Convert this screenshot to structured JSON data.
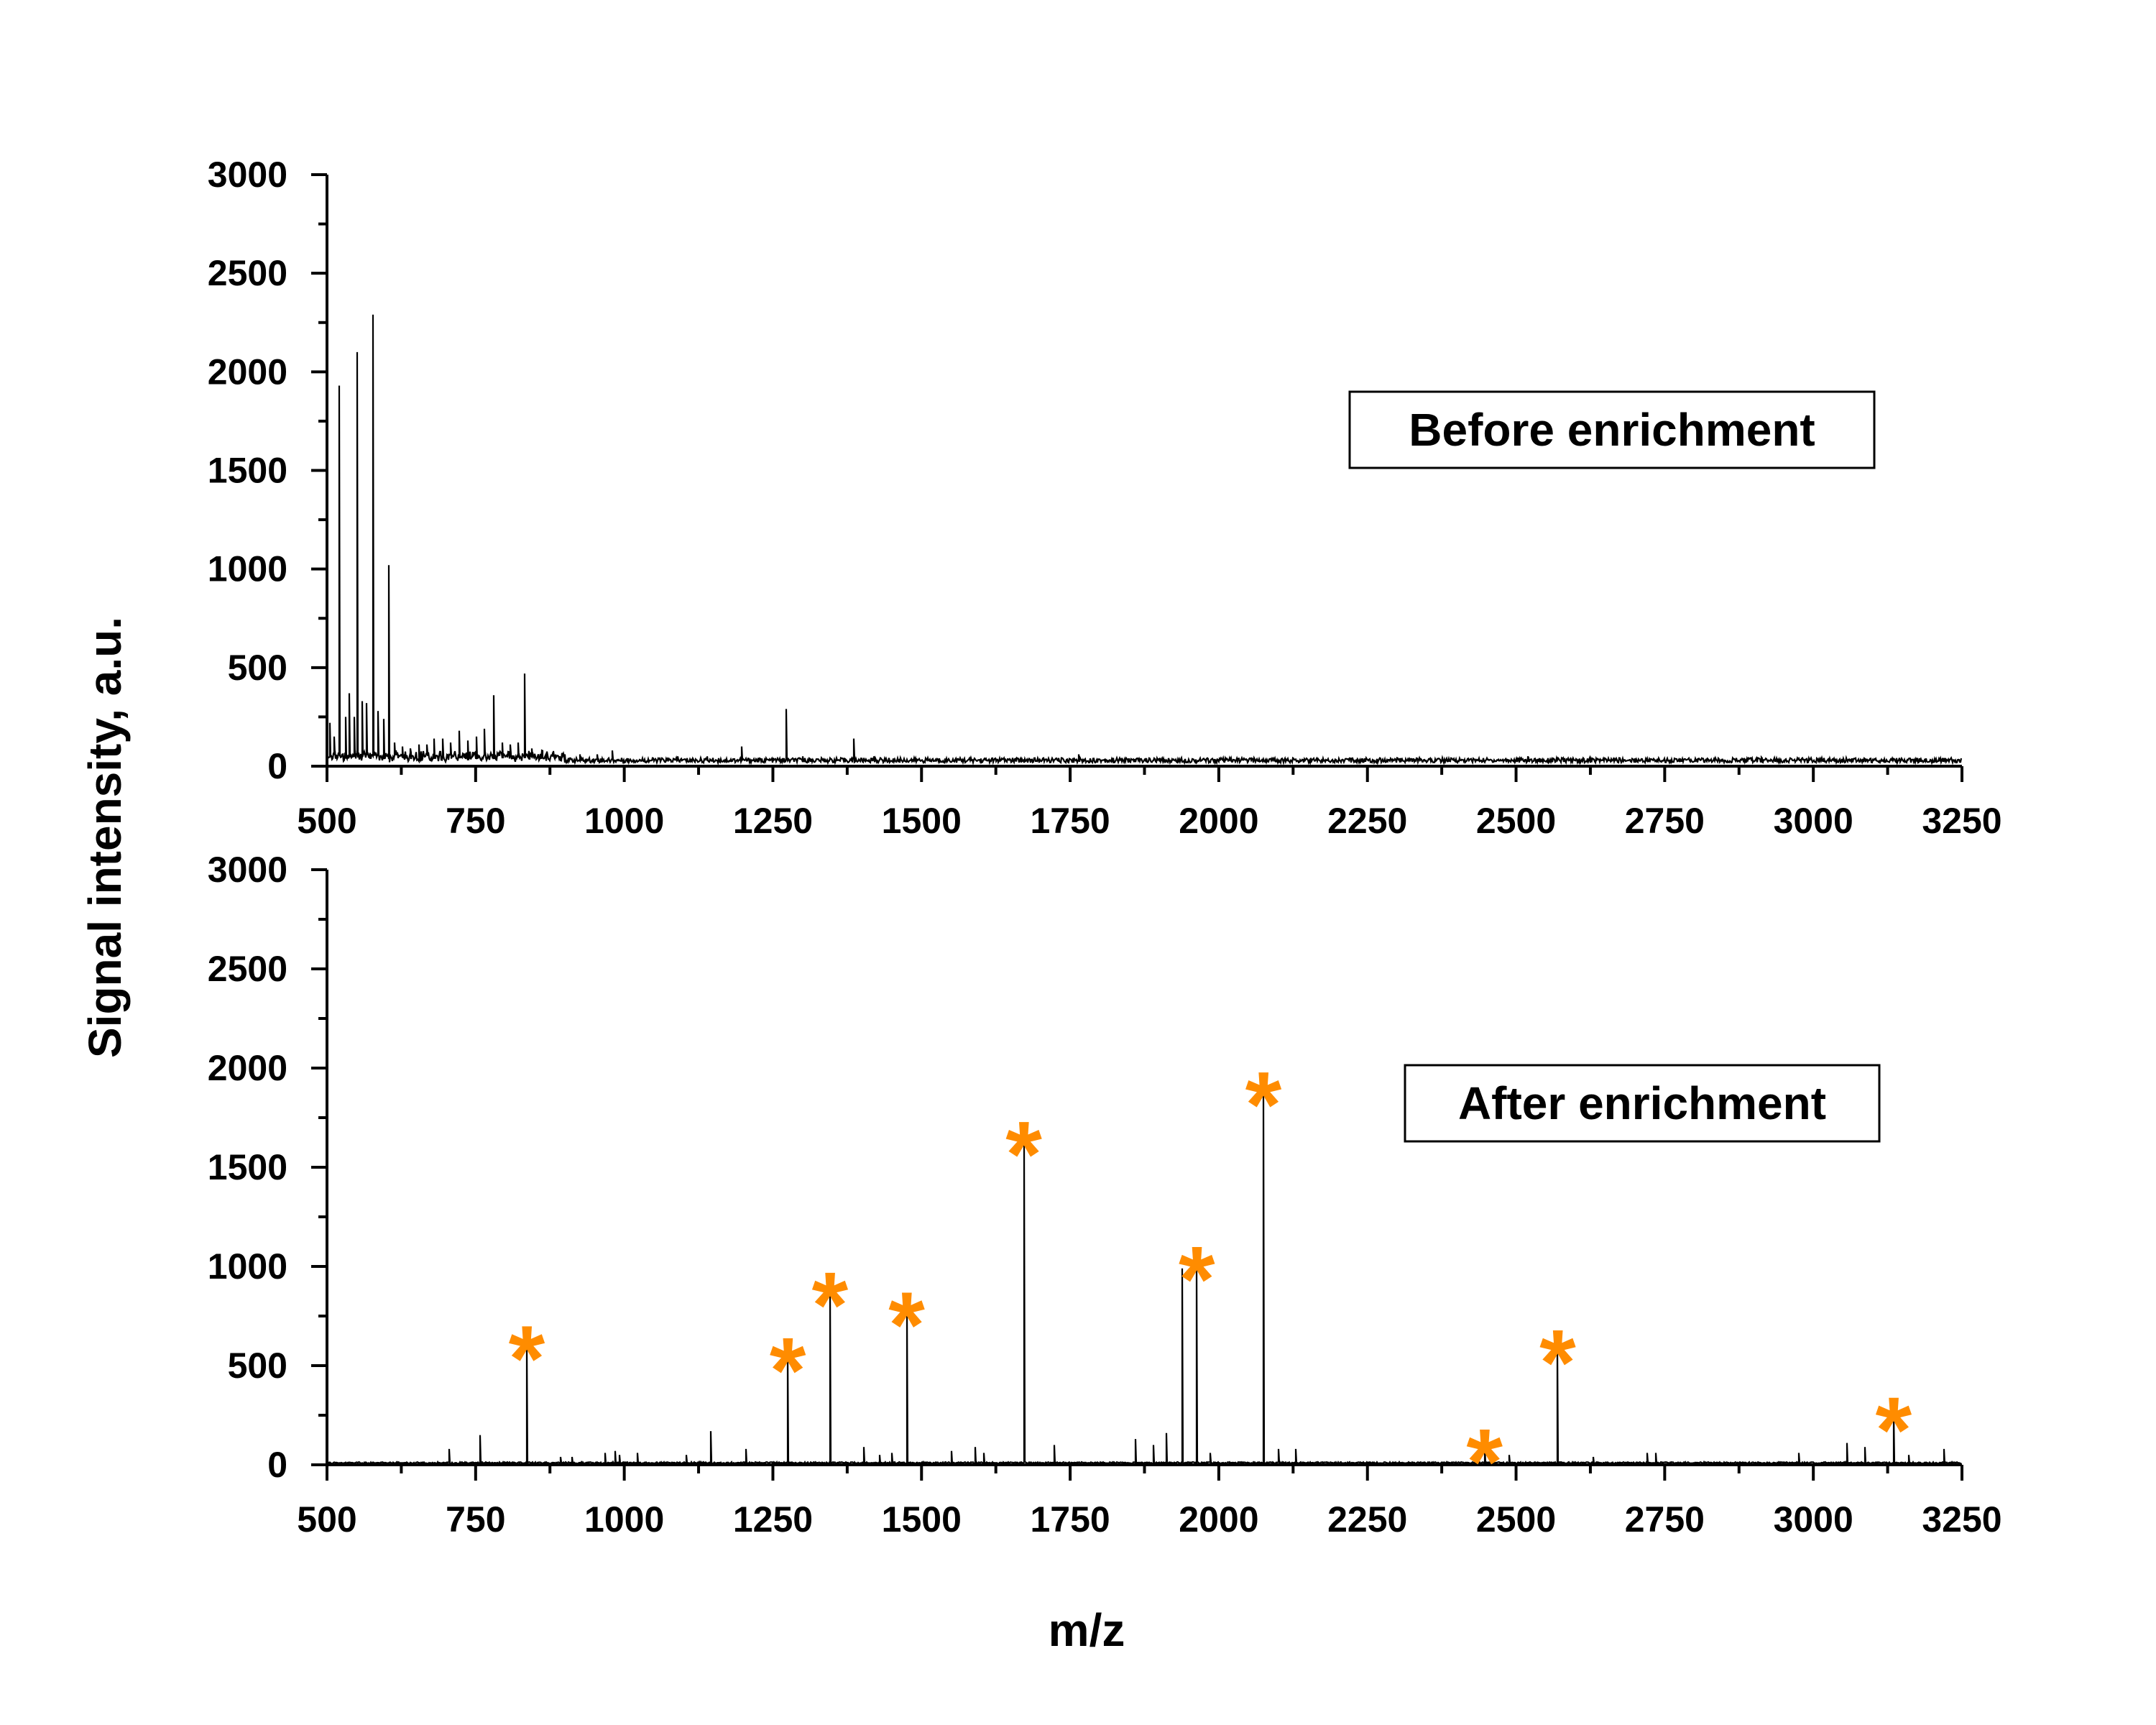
{
  "figure": {
    "ylabel": "Signal intensity, a.u.",
    "xlabel": "m/z"
  },
  "chart_data": [
    {
      "type": "line",
      "name": "top-panel",
      "legend": "Before enrichment",
      "xlim": [
        500,
        3250
      ],
      "ylim": [
        0,
        3000
      ],
      "x_ticks": [
        500,
        750,
        1000,
        1250,
        1500,
        1750,
        2000,
        2250,
        2500,
        2750,
        3000,
        3250
      ],
      "y_ticks": [
        0,
        500,
        1000,
        1500,
        2000,
        2500,
        3000
      ],
      "baseline": 30,
      "peaks": [
        {
          "x": 505,
          "y": 220
        },
        {
          "x": 512,
          "y": 150
        },
        {
          "x": 521,
          "y": 1930
        },
        {
          "x": 531,
          "y": 250
        },
        {
          "x": 538,
          "y": 370
        },
        {
          "x": 546,
          "y": 250
        },
        {
          "x": 551,
          "y": 2100
        },
        {
          "x": 559,
          "y": 330
        },
        {
          "x": 566,
          "y": 320
        },
        {
          "x": 577,
          "y": 2290
        },
        {
          "x": 586,
          "y": 280
        },
        {
          "x": 595,
          "y": 240
        },
        {
          "x": 604,
          "y": 1020
        },
        {
          "x": 614,
          "y": 120
        },
        {
          "x": 627,
          "y": 100
        },
        {
          "x": 640,
          "y": 90
        },
        {
          "x": 655,
          "y": 110
        },
        {
          "x": 668,
          "y": 110
        },
        {
          "x": 680,
          "y": 140
        },
        {
          "x": 695,
          "y": 140
        },
        {
          "x": 708,
          "y": 120
        },
        {
          "x": 722,
          "y": 180
        },
        {
          "x": 737,
          "y": 130
        },
        {
          "x": 752,
          "y": 150
        },
        {
          "x": 765,
          "y": 190
        },
        {
          "x": 781,
          "y": 360
        },
        {
          "x": 795,
          "y": 120
        },
        {
          "x": 808,
          "y": 110
        },
        {
          "x": 821,
          "y": 120
        },
        {
          "x": 833,
          "y": 470
        },
        {
          "x": 845,
          "y": 90
        },
        {
          "x": 862,
          "y": 80
        },
        {
          "x": 880,
          "y": 70
        },
        {
          "x": 900,
          "y": 60
        },
        {
          "x": 925,
          "y": 60
        },
        {
          "x": 955,
          "y": 60
        },
        {
          "x": 980,
          "y": 80
        },
        {
          "x": 1090,
          "y": 50
        },
        {
          "x": 1140,
          "y": 50
        },
        {
          "x": 1198,
          "y": 100
        },
        {
          "x": 1272,
          "y": 290
        },
        {
          "x": 1300,
          "y": 50
        },
        {
          "x": 1386,
          "y": 140
        },
        {
          "x": 1420,
          "y": 50
        },
        {
          "x": 1764,
          "y": 60
        },
        {
          "x": 2520,
          "y": 50
        },
        {
          "x": 2913,
          "y": 45
        }
      ]
    },
    {
      "type": "line",
      "name": "bottom-panel",
      "legend": "After enrichment",
      "xlim": [
        500,
        3250
      ],
      "ylim": [
        0,
        3000
      ],
      "x_ticks": [
        500,
        750,
        1000,
        1250,
        1500,
        1750,
        2000,
        2250,
        2500,
        2750,
        3000,
        3250
      ],
      "y_ticks": [
        0,
        500,
        1000,
        1500,
        2000,
        2500,
        3000
      ],
      "baseline": 10,
      "peaks": [
        {
          "x": 706,
          "y": 80
        },
        {
          "x": 757,
          "y": 150
        },
        {
          "x": 836,
          "y": 620
        },
        {
          "x": 893,
          "y": 40
        },
        {
          "x": 912,
          "y": 40
        },
        {
          "x": 968,
          "y": 60
        },
        {
          "x": 985,
          "y": 70
        },
        {
          "x": 992,
          "y": 50
        },
        {
          "x": 1022,
          "y": 60
        },
        {
          "x": 1104,
          "y": 50
        },
        {
          "x": 1146,
          "y": 170
        },
        {
          "x": 1205,
          "y": 80
        },
        {
          "x": 1275,
          "y": 560
        },
        {
          "x": 1346,
          "y": 890
        },
        {
          "x": 1403,
          "y": 90
        },
        {
          "x": 1430,
          "y": 50
        },
        {
          "x": 1450,
          "y": 60
        },
        {
          "x": 1475,
          "y": 790
        },
        {
          "x": 1550,
          "y": 70
        },
        {
          "x": 1590,
          "y": 90
        },
        {
          "x": 1605,
          "y": 60
        },
        {
          "x": 1672,
          "y": 1650
        },
        {
          "x": 1723,
          "y": 100
        },
        {
          "x": 1860,
          "y": 130
        },
        {
          "x": 1890,
          "y": 100
        },
        {
          "x": 1912,
          "y": 160
        },
        {
          "x": 1938,
          "y": 990
        },
        {
          "x": 1963,
          "y": 1020
        },
        {
          "x": 1985,
          "y": 60
        },
        {
          "x": 2075,
          "y": 1900
        },
        {
          "x": 2100,
          "y": 80
        },
        {
          "x": 2130,
          "y": 80
        },
        {
          "x": 2447,
          "y": 100
        },
        {
          "x": 2489,
          "y": 50
        },
        {
          "x": 2570,
          "y": 600
        },
        {
          "x": 2630,
          "y": 40
        },
        {
          "x": 2720,
          "y": 60
        },
        {
          "x": 2735,
          "y": 60
        },
        {
          "x": 2975,
          "y": 60
        },
        {
          "x": 3057,
          "y": 110
        },
        {
          "x": 3087,
          "y": 90
        },
        {
          "x": 3135,
          "y": 260
        },
        {
          "x": 3160,
          "y": 50
        },
        {
          "x": 3220,
          "y": 80
        }
      ],
      "annotations": [
        {
          "text": "*",
          "x": 836
        },
        {
          "text": "*",
          "x": 1275
        },
        {
          "text": "*",
          "x": 1346
        },
        {
          "text": "*",
          "x": 1475
        },
        {
          "text": "*",
          "x": 1672
        },
        {
          "text": "*",
          "x": 1963
        },
        {
          "text": "*",
          "x": 2075
        },
        {
          "text": "*",
          "x": 2447
        },
        {
          "text": "*",
          "x": 2570
        },
        {
          "text": "*",
          "x": 3135
        }
      ],
      "annotation_color": "#ff8c00"
    }
  ]
}
